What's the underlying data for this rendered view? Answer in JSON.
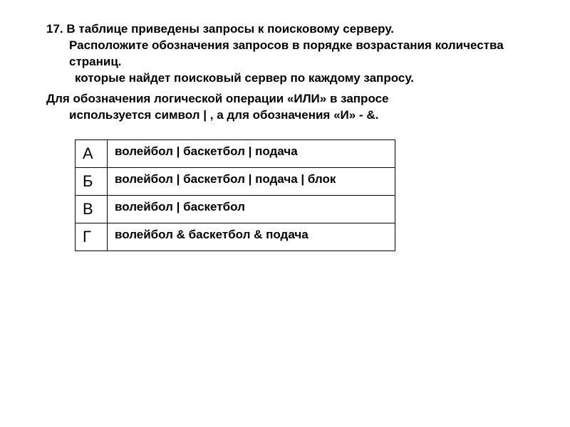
{
  "question": {
    "number": "17.",
    "line1": "В таблице приведены запросы к поисковому серверу.",
    "line2": "Расположите обозначения запросов в порядке возрастания количества страниц.",
    "line3": "которые найдет поисковый сервер по каждому запросу."
  },
  "note": {
    "line1": "Для обозначения логической операции «ИЛИ» в запросе",
    "line2": "используется символ | , а для обозначения «И» - &."
  },
  "table": {
    "rows": [
      {
        "letter": "А",
        "query": "волейбол | баскетбол | подача"
      },
      {
        "letter": "Б",
        "query": "волейбол | баскетбол | подача | блок"
      },
      {
        "letter": "В",
        "query": "волейбол | баскетбол"
      },
      {
        "letter": "Г",
        "query": "волейбол & баскетбол & подача"
      }
    ]
  }
}
